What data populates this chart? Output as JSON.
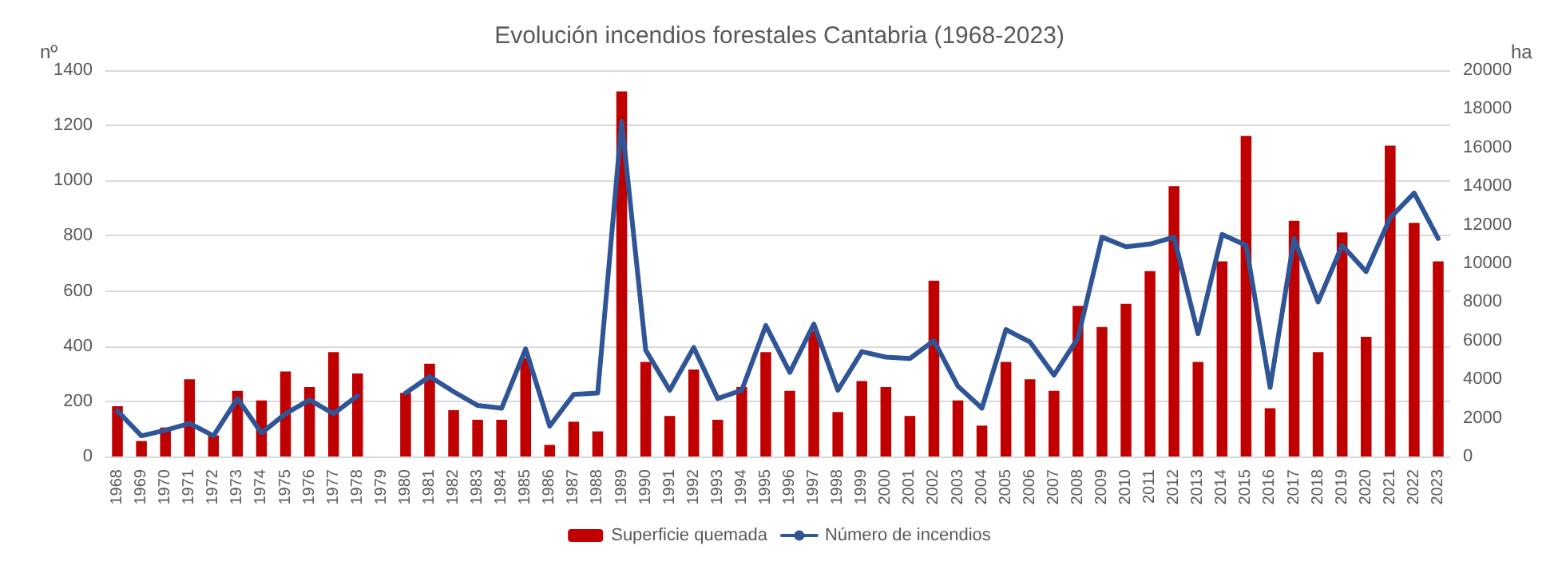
{
  "chart_data": {
    "type": "bar",
    "title": "Evolución incendios forestales Cantabria (1968-2023)",
    "ylabel": "nº",
    "y2label": "ha",
    "categories": [
      "1968",
      "1969",
      "1970",
      "1971",
      "1972",
      "1973",
      "1974",
      "1975",
      "1976",
      "1977",
      "1978",
      "1979",
      "1980",
      "1981",
      "1982",
      "1983",
      "1984",
      "1985",
      "1986",
      "1987",
      "1988",
      "1989",
      "1990",
      "1991",
      "1992",
      "1993",
      "1994",
      "1995",
      "1996",
      "1997",
      "1998",
      "1999",
      "2000",
      "2001",
      "2002",
      "2003",
      "2004",
      "2005",
      "2006",
      "2007",
      "2008",
      "2009",
      "2010",
      "2011",
      "2012",
      "2013",
      "2014",
      "2015",
      "2016",
      "2017",
      "2018",
      "2019",
      "2020",
      "2021",
      "2022",
      "2023"
    ],
    "series": [
      {
        "name": "Superficie quemada",
        "axis": "y2",
        "color": "#c00000",
        "values": [
          2600,
          800,
          1500,
          4000,
          1100,
          3400,
          2900,
          4400,
          3600,
          5400,
          4300,
          null,
          3300,
          4800,
          2400,
          1900,
          1900,
          5100,
          600,
          1800,
          1300,
          18900,
          4900,
          2100,
          4500,
          1900,
          3600,
          5400,
          3400,
          6500,
          2300,
          3900,
          3600,
          2100,
          9100,
          2900,
          1600,
          4900,
          4000,
          3400,
          7800,
          6700,
          7900,
          9600,
          14000,
          4900,
          10100,
          16600,
          2500,
          12200,
          5400,
          11600,
          6200,
          16100,
          12100,
          10100
        ]
      },
      {
        "name": "Número de incendios",
        "type": "line",
        "color": "#2f5597",
        "values": [
          165,
          75,
          95,
          120,
          75,
          210,
          85,
          155,
          205,
          155,
          220,
          null,
          230,
          290,
          235,
          185,
          175,
          390,
          110,
          225,
          230,
          1215,
          385,
          240,
          395,
          210,
          240,
          475,
          305,
          480,
          240,
          380,
          360,
          355,
          420,
          255,
          175,
          460,
          415,
          295,
          430,
          795,
          760,
          770,
          795,
          445,
          805,
          765,
          250,
          790,
          560,
          765,
          670,
          865,
          955,
          790
        ]
      }
    ],
    "ylim": [
      0,
      1400
    ],
    "yticks": [
      0,
      200,
      400,
      600,
      800,
      1000,
      1200,
      1400
    ],
    "y2lim": [
      0,
      20000
    ],
    "y2ticks": [
      0,
      2000,
      4000,
      6000,
      8000,
      10000,
      12000,
      14000,
      16000,
      18000,
      20000
    ],
    "grid": "y",
    "legend": "bottom",
    "marker": "none",
    "line_style": "solid"
  }
}
